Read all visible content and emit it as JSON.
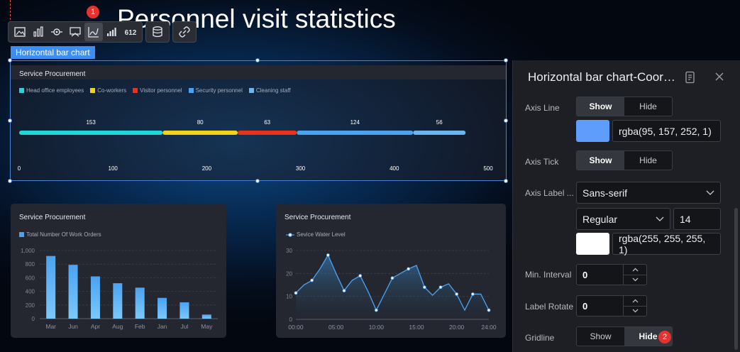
{
  "page_title": "Personnel visit statistics",
  "badges": {
    "toolbar": "1",
    "gridline": "2"
  },
  "toolbar": {
    "group1": [
      "image-icon",
      "bar-chart-icon",
      "eye-icon",
      "map-icon",
      "line-chart-icon",
      "rank-bar-icon",
      "number-icon"
    ],
    "group2": [
      "database-icon"
    ],
    "group3": [
      "link-icon"
    ]
  },
  "selected_chip": "Horizontal bar chart",
  "colors": {
    "cyan": "#1fd6d8",
    "yellow": "#f4d21a",
    "red": "#e8321c",
    "blue1": "#4aa3f2",
    "blue2": "#6ab4f0",
    "accent": "#5f9dfc"
  },
  "main_chart": {
    "title": "Service Procurement",
    "legend": [
      {
        "name": "Head office employees",
        "color": "#1fd6d8"
      },
      {
        "name": "Co-workers",
        "color": "#f4d21a"
      },
      {
        "name": "Visitor personnel",
        "color": "#e8321c"
      },
      {
        "name": "Security personnel",
        "color": "#4aa3f2"
      },
      {
        "name": "Cleaning staff",
        "color": "#6ab4f0"
      }
    ]
  },
  "bar_card": {
    "title": "Service Procurement",
    "legend": "Total Number Of Work Orders"
  },
  "line_card": {
    "title": "Service Procurement",
    "legend": "Sevice Water Level"
  },
  "chart_data": [
    {
      "type": "bar",
      "orientation": "horizontal",
      "stacked": true,
      "title": "Service Procurement",
      "series": [
        {
          "name": "Head office employees",
          "values": [
            153
          ]
        },
        {
          "name": "Co-workers",
          "values": [
            80
          ]
        },
        {
          "name": "Visitor personnel",
          "values": [
            63
          ]
        },
        {
          "name": "Security personnel",
          "values": [
            124
          ]
        },
        {
          "name": "Cleaning staff",
          "values": [
            56
          ]
        }
      ],
      "xlim": [
        0,
        500
      ],
      "xticks": [
        "0",
        "100",
        "200",
        "300",
        "400",
        "500"
      ],
      "grid": false,
      "legend": "top-left"
    },
    {
      "type": "bar",
      "title": "Service Procurement",
      "categories": [
        "Mar",
        "Jun",
        "Apr",
        "Aug",
        "Feb",
        "Jan",
        "Jul",
        "May"
      ],
      "series": [
        {
          "name": "Total Number Of Work Orders",
          "values": [
            920,
            790,
            620,
            520,
            455,
            305,
            240,
            60
          ]
        }
      ],
      "ylim": [
        0,
        1000
      ],
      "yticks": [
        "0",
        "200",
        "400",
        "600",
        "800",
        "1,000"
      ],
      "grid": true,
      "legend": "top-left"
    },
    {
      "type": "area",
      "title": "Service Procurement",
      "x": [
        "00:00",
        "01:00",
        "02:00",
        "03:00",
        "04:00",
        "05:00",
        "06:00",
        "07:00",
        "08:00",
        "09:00",
        "10:00",
        "11:00",
        "12:00",
        "13:00",
        "14:00",
        "15:00",
        "16:00",
        "17:00",
        "18:00",
        "19:00",
        "20:00",
        "21:00",
        "22:00",
        "23:00",
        "24:00"
      ],
      "series": [
        {
          "name": "Sevice Water Level",
          "values": [
            11.5,
            15,
            17,
            22,
            28,
            20,
            12.5,
            17,
            19,
            12,
            4,
            11,
            18,
            20,
            22,
            23.5,
            14,
            10.5,
            14,
            15.5,
            11,
            4,
            11,
            11,
            4
          ]
        }
      ],
      "xticks": [
        "00:00",
        "05:00",
        "10:00",
        "15:00",
        "20:00",
        "24:00"
      ],
      "ylim": [
        0,
        30
      ],
      "yticks": [
        "0",
        "10",
        "20",
        "30"
      ],
      "grid": true,
      "legend": "top-left"
    }
  ],
  "panel": {
    "title": "Horizontal bar chart-Coordi...",
    "axis_line": {
      "label": "Axis Line",
      "show": "Show",
      "hide": "Hide",
      "color_text": "rgba(95, 157, 252, 1)",
      "color": "#5f9dfc"
    },
    "axis_tick": {
      "label": "Axis Tick",
      "show": "Show",
      "hide": "Hide"
    },
    "axis_label": {
      "label": "Axis Label ...",
      "font_family": "Sans-serif",
      "weight": "Regular",
      "size": "14",
      "color_text": "rgba(255, 255, 255, 1)",
      "color": "#ffffff"
    },
    "min_interval": {
      "label": "Min. Interval",
      "value": "0"
    },
    "label_rotate": {
      "label": "Label Rotate",
      "value": "0"
    },
    "gridline": {
      "label": "Gridline",
      "show": "Show",
      "hide": "Hide"
    }
  }
}
